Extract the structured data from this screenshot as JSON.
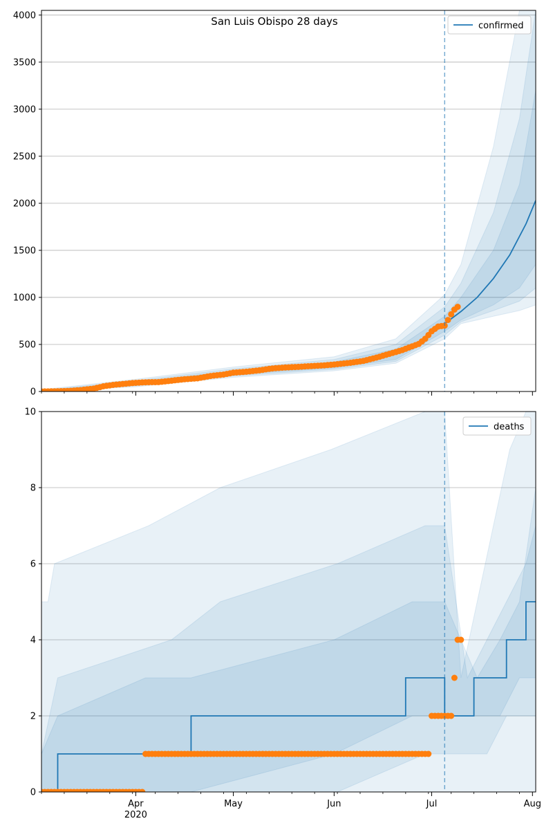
{
  "figure_title": "San Luis Obispo 28 days",
  "colors": {
    "model": "#1f77b4",
    "observed": "#ff7f0e",
    "band": "#1f77b4",
    "grid": "#b0b0b0",
    "vline": "#1f77b4"
  },
  "x_axis": {
    "range": [
      "2020-03-03",
      "2020-08-02"
    ],
    "month_ticks": [
      {
        "date": "2020-04-01",
        "label": "Apr",
        "sublabel": "2020"
      },
      {
        "date": "2020-05-01",
        "label": "May",
        "sublabel": ""
      },
      {
        "date": "2020-06-01",
        "label": "Jun",
        "sublabel": ""
      },
      {
        "date": "2020-07-01",
        "label": "Jul",
        "sublabel": ""
      },
      {
        "date": "2020-08-01",
        "label": "Aug",
        "sublabel": ""
      }
    ],
    "forecast_start": "2020-07-05"
  },
  "chart_data": [
    {
      "type": "line",
      "panel": "top",
      "title": "San Luis Obispo 28 days",
      "legend": {
        "labels": [
          "confirmed"
        ],
        "placement": "top-right"
      },
      "ylim": [
        0,
        4050
      ],
      "yticks": [
        0,
        500,
        1000,
        1500,
        2000,
        2500,
        3000,
        3500,
        4000
      ],
      "grid": "horizontal",
      "model_median": {
        "name": "confirmed",
        "x": [
          "2020-07-05",
          "2020-07-10",
          "2020-07-15",
          "2020-07-20",
          "2020-07-25",
          "2020-07-30",
          "2020-08-02"
        ],
        "y": [
          720,
          850,
          1000,
          1200,
          1450,
          1780,
          2030
        ]
      },
      "bands": [
        {
          "x": [
            "2020-03-03",
            "2020-04-01",
            "2020-05-01",
            "2020-06-01",
            "2020-06-20",
            "2020-07-05",
            "2020-07-10",
            "2020-07-20",
            "2020-07-28",
            "2020-08-02"
          ],
          "lower": [
            0,
            50,
            150,
            220,
            300,
            560,
            720,
            800,
            860,
            920
          ],
          "upper": [
            20,
            130,
            260,
            370,
            560,
            1030,
            1350,
            2600,
            4050,
            4050
          ]
        },
        {
          "x": [
            "2020-03-03",
            "2020-04-01",
            "2020-05-01",
            "2020-06-01",
            "2020-06-20",
            "2020-07-05",
            "2020-07-10",
            "2020-07-20",
            "2020-07-28",
            "2020-08-02"
          ],
          "lower": [
            0,
            60,
            165,
            235,
            320,
            600,
            740,
            860,
            960,
            1100
          ],
          "upper": [
            12,
            115,
            240,
            340,
            500,
            900,
            1150,
            1900,
            2900,
            4050
          ]
        },
        {
          "x": [
            "2020-03-03",
            "2020-04-01",
            "2020-05-01",
            "2020-06-01",
            "2020-06-20",
            "2020-07-05",
            "2020-07-10",
            "2020-07-20",
            "2020-07-28",
            "2020-08-02"
          ],
          "lower": [
            0,
            70,
            180,
            250,
            340,
            640,
            760,
            920,
            1100,
            1350
          ],
          "upper": [
            8,
            100,
            220,
            315,
            450,
            800,
            1000,
            1500,
            2200,
            3200
          ]
        }
      ],
      "observed": {
        "name": "observed",
        "x": [
          "2020-03-03",
          "2020-03-07",
          "2020-03-11",
          "2020-03-15",
          "2020-03-19",
          "2020-03-22",
          "2020-03-25",
          "2020-03-28",
          "2020-03-31",
          "2020-04-04",
          "2020-04-08",
          "2020-04-12",
          "2020-04-16",
          "2020-04-20",
          "2020-04-24",
          "2020-04-28",
          "2020-05-01",
          "2020-05-05",
          "2020-05-09",
          "2020-05-13",
          "2020-05-17",
          "2020-05-21",
          "2020-05-25",
          "2020-05-29",
          "2020-06-02",
          "2020-06-06",
          "2020-06-10",
          "2020-06-14",
          "2020-06-18",
          "2020-06-22",
          "2020-06-25",
          "2020-06-27",
          "2020-06-29",
          "2020-07-01",
          "2020-07-03",
          "2020-07-05",
          "2020-07-06",
          "2020-07-07",
          "2020-07-08",
          "2020-07-09"
        ],
        "y": [
          0,
          2,
          5,
          15,
          30,
          55,
          70,
          80,
          90,
          98,
          100,
          115,
          130,
          140,
          165,
          180,
          200,
          210,
          225,
          245,
          255,
          262,
          270,
          278,
          290,
          305,
          325,
          360,
          400,
          440,
          480,
          505,
          560,
          640,
          690,
          700,
          760,
          820,
          870,
          900
        ]
      }
    },
    {
      "type": "line",
      "panel": "bottom",
      "legend": {
        "labels": [
          "deaths"
        ],
        "placement": "top-right"
      },
      "ylim": [
        0,
        10
      ],
      "yticks": [
        0,
        2,
        4,
        6,
        8,
        10
      ],
      "grid": "horizontal",
      "model_median": {
        "name": "deaths",
        "steps": [
          {
            "date": "2020-03-03",
            "value": 0
          },
          {
            "date": "2020-03-08",
            "value": 1
          },
          {
            "date": "2020-04-18",
            "value": 2
          },
          {
            "date": "2020-06-23",
            "value": 3
          },
          {
            "date": "2020-07-05",
            "value": 3
          },
          {
            "date": "2020-07-05",
            "value": 2
          },
          {
            "date": "2020-07-14",
            "value": 3
          },
          {
            "date": "2020-07-24",
            "value": 4
          },
          {
            "date": "2020-07-30",
            "value": 5
          },
          {
            "date": "2020-08-02",
            "value": 5
          }
        ]
      },
      "bands": [
        {
          "x": [
            "2020-03-03",
            "2020-03-05",
            "2020-03-07",
            "2020-04-05",
            "2020-04-27",
            "2020-05-31",
            "2020-06-29",
            "2020-07-05",
            "2020-07-10",
            "2020-07-15",
            "2020-07-20",
            "2020-07-25",
            "2020-07-30",
            "2020-08-02"
          ],
          "lower": [
            0,
            0,
            0,
            0,
            0,
            0,
            0,
            0,
            0,
            0,
            0,
            0,
            0,
            0
          ],
          "upper": [
            5,
            5,
            6,
            7,
            8,
            9,
            10,
            10,
            3,
            5,
            7,
            9,
            10,
            10
          ]
        },
        {
          "x": [
            "2020-03-03",
            "2020-03-08",
            "2020-04-12",
            "2020-04-27",
            "2020-06-02",
            "2020-06-29",
            "2020-07-05",
            "2020-07-12",
            "2020-07-18",
            "2020-07-24",
            "2020-07-30",
            "2020-08-02"
          ],
          "lower": [
            0,
            0,
            0,
            0,
            0,
            1,
            1,
            1,
            1,
            2,
            2,
            2
          ],
          "upper": [
            1,
            3,
            4,
            5,
            6,
            7,
            7,
            3,
            4,
            5,
            6,
            7
          ]
        },
        {
          "x": [
            "2020-03-03",
            "2020-03-08",
            "2020-04-04",
            "2020-04-18",
            "2020-06-01",
            "2020-06-25",
            "2020-07-05",
            "2020-07-15",
            "2020-07-22",
            "2020-07-28",
            "2020-08-02"
          ],
          "lower": [
            0,
            0,
            0,
            0,
            1,
            2,
            2,
            2,
            2,
            3,
            3
          ],
          "upper": [
            1,
            2,
            3,
            3,
            4,
            5,
            5,
            3,
            4,
            5,
            8
          ]
        }
      ],
      "observed": {
        "name": "observed",
        "x": [
          "2020-03-03",
          "2020-03-10",
          "2020-03-17",
          "2020-03-24",
          "2020-03-31",
          "2020-04-03",
          "2020-04-04",
          "2020-04-11",
          "2020-04-18",
          "2020-04-25",
          "2020-05-02",
          "2020-05-09",
          "2020-05-16",
          "2020-05-23",
          "2020-05-30",
          "2020-06-06",
          "2020-06-13",
          "2020-06-20",
          "2020-06-27",
          "2020-06-30",
          "2020-07-01",
          "2020-07-03",
          "2020-07-05",
          "2020-07-07",
          "2020-07-08",
          "2020-07-09",
          "2020-07-10"
        ],
        "y": [
          0,
          0,
          0,
          0,
          0,
          0,
          1,
          1,
          1,
          1,
          1,
          1,
          1,
          1,
          1,
          1,
          1,
          1,
          1,
          1,
          2,
          2,
          2,
          2,
          3,
          4,
          4
        ]
      }
    }
  ]
}
